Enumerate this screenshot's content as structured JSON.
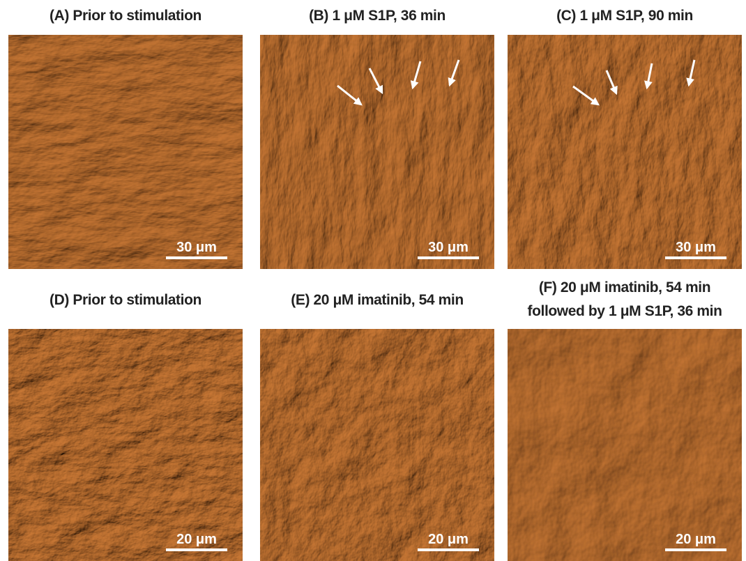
{
  "panels": [
    {
      "title": [
        "(A) Prior to stimulation"
      ],
      "scale_bar": "30 μm"
    },
    {
      "title": [
        "(B) 1 μM S1P, 36 min"
      ],
      "scale_bar": "30 μm"
    },
    {
      "title": [
        "(C) 1 μM S1P, 90 min"
      ],
      "scale_bar": "30 μm"
    },
    {
      "title": [
        "(D) Prior to stimulation"
      ],
      "scale_bar": "20 μm"
    },
    {
      "title": [
        "(E) 20 μM imatinib, 54 min"
      ],
      "scale_bar": "20 μm"
    },
    {
      "title": [
        "(F) 20 μM imatinib, 54 min",
        "followed by 1 μM S1P, 36 min"
      ],
      "scale_bar": "20 μm"
    }
  ]
}
